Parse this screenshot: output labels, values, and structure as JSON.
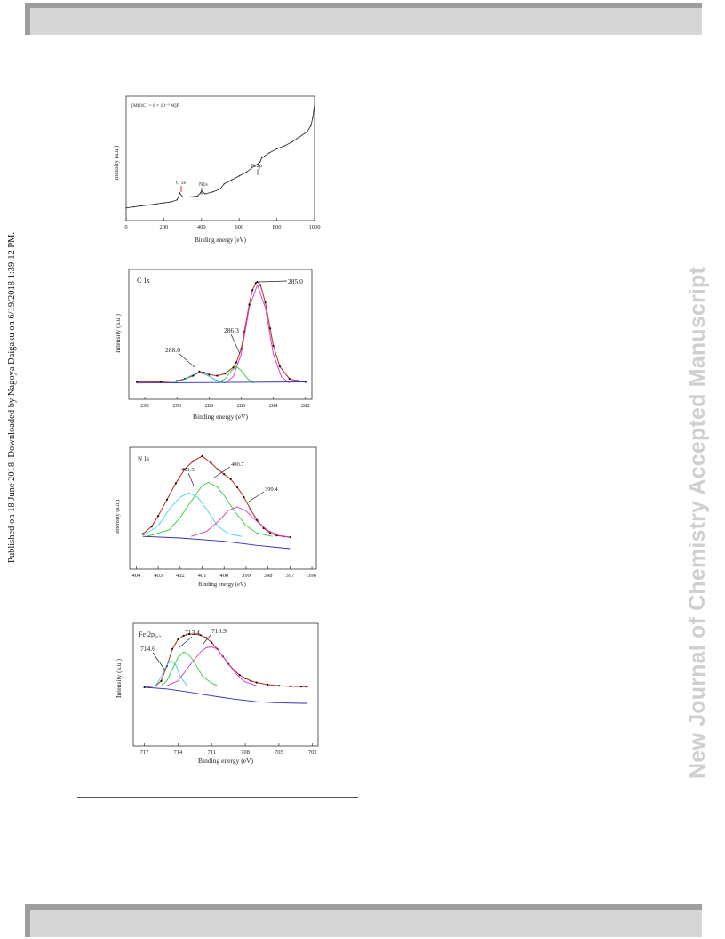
{
  "header_bar": {},
  "footer_bar": {},
  "side_note": "Published on 18 June 2018. Downloaded by Nagoya Daigaku on 6/19/2018 1:39:12 PM.",
  "watermark": "New Journal of Chemistry Accepted Manuscript",
  "chart_data": [
    {
      "type": "line",
      "panel_label": "[M(OC) = 6 × 10⁻³ M]P",
      "xlabel": "Binding energy (eV)",
      "ylabel": "Intensity (a.u.)",
      "xlim": [
        0,
        1000
      ],
      "x_ticks": [
        "0",
        "200",
        "400",
        "600",
        "800",
        "1000"
      ],
      "annotations": [
        "C 1s",
        "N1s",
        "Fe2p"
      ],
      "series": [
        {
          "x": [
            0,
            40,
            80,
            120,
            160,
            200,
            240,
            270,
            280,
            284,
            300,
            340,
            380,
            395,
            400,
            420,
            460,
            500,
            520,
            560,
            600,
            640,
            680,
            700,
            711,
            720,
            760,
            800,
            840,
            880,
            920,
            960,
            980,
            990,
            1000
          ],
          "y": [
            2,
            3,
            4,
            5,
            6,
            7,
            8,
            10,
            14,
            17,
            13,
            13,
            14,
            17,
            19,
            16,
            18,
            21,
            26,
            30,
            34,
            38,
            44,
            46,
            48,
            52,
            57,
            61,
            64,
            68,
            73,
            78,
            84,
            92,
            105
          ]
        }
      ]
    },
    {
      "type": "line",
      "panel_label": "C 1s",
      "xlabel": "Binding energy (eV)",
      "ylabel": "Intensity (a.u.)",
      "xlim": [
        293,
        281.6
      ],
      "x_ticks": [
        "292",
        "290",
        "288",
        "286",
        "284",
        "282"
      ],
      "annotations": [
        "285.0",
        "286.3",
        "288.6"
      ],
      "peaks": [
        285.0,
        286.3,
        288.6
      ],
      "series": [
        {
          "name": "fit",
          "x": [
            292.5,
            291,
            290,
            289.5,
            289,
            288.8,
            288.6,
            288.3,
            288,
            287.5,
            287,
            286.5,
            286.3,
            286,
            285.8,
            285.5,
            285.3,
            285.1,
            285.0,
            284.8,
            284.5,
            284.2,
            284,
            283.6,
            283,
            282.5,
            282
          ],
          "y": [
            3,
            3,
            4,
            6,
            9,
            11,
            13,
            12,
            10,
            9,
            11,
            17,
            22,
            35,
            52,
            78,
            92,
            99,
            100,
            97,
            80,
            55,
            38,
            18,
            6,
            4,
            3
          ]
        },
        {
          "name": "285.0",
          "x": [
            287,
            286.5,
            286,
            285.5,
            285,
            284.5,
            284,
            283.5,
            283
          ],
          "y": [
            2,
            8,
            30,
            75,
            97,
            75,
            30,
            8,
            2
          ]
        },
        {
          "name": "286.3",
          "x": [
            287.5,
            287,
            286.6,
            286.3,
            286,
            285.6,
            285.2
          ],
          "y": [
            2,
            6,
            14,
            18,
            14,
            6,
            2
          ]
        },
        {
          "name": "288.6",
          "x": [
            290.3,
            289.6,
            289,
            288.6,
            288.2,
            287.6,
            287
          ],
          "y": [
            2,
            5,
            10,
            12,
            10,
            5,
            2
          ]
        },
        {
          "name": "baseline",
          "x": [
            292.5,
            282
          ],
          "y": [
            2,
            3
          ]
        }
      ]
    },
    {
      "type": "line",
      "panel_label": "N 1s",
      "xlabel": "Binding energy (eV)",
      "ylabel": "Intensity (a.u.)",
      "xlim": [
        404.3,
        395.8
      ],
      "x_ticks": [
        "404",
        "403",
        "402",
        "401",
        "400",
        "399",
        "398",
        "397",
        "396"
      ],
      "annotations": [
        "401.5",
        "400.7",
        "399.4"
      ],
      "peaks": [
        401.5,
        400.7,
        399.4
      ],
      "series": [
        {
          "name": "fit",
          "x": [
            403.7,
            403.3,
            403,
            402.6,
            402.2,
            401.8,
            401.4,
            401.0,
            400.6,
            400.3,
            400,
            399.7,
            399.4,
            399.1,
            398.8,
            398.5,
            398.2,
            397.9,
            397.6,
            397.3,
            397.0
          ],
          "y": [
            5,
            14,
            27,
            47,
            67,
            84,
            94,
            100,
            92,
            84,
            78,
            72,
            62,
            50,
            35,
            22,
            12,
            6,
            3,
            2,
            1
          ]
        },
        {
          "name": "401.5",
          "x": [
            403.7,
            403,
            402.5,
            402,
            401.6,
            401.2,
            400.8,
            400.3,
            399.8,
            399.2
          ],
          "y": [
            3,
            15,
            35,
            50,
            55,
            50,
            35,
            15,
            5,
            2
          ]
        },
        {
          "name": "400.7",
          "x": [
            403.5,
            402.5,
            402,
            401.5,
            401,
            400.7,
            400.3,
            400,
            399.5,
            399,
            398.5,
            397.8
          ],
          "y": [
            2,
            10,
            25,
            45,
            64,
            68,
            62,
            52,
            32,
            15,
            6,
            2
          ]
        },
        {
          "name": "399.4",
          "x": [
            401.5,
            400.8,
            400.2,
            399.8,
            399.4,
            399.0,
            398.5,
            398.0,
            397.5,
            397.0
          ],
          "y": [
            2,
            8,
            22,
            34,
            38,
            33,
            20,
            9,
            3,
            1
          ]
        },
        {
          "name": "baseline",
          "x": [
            403.7,
            402,
            400,
            398.5,
            397
          ],
          "y": [
            2,
            0,
            -4,
            -9,
            -13
          ]
        }
      ]
    },
    {
      "type": "line",
      "panel_label": "Fe 2p3/2",
      "xlabel": "Binding energy (eV)",
      "ylabel": "Intensity (a.u.)",
      "xlim": [
        718,
        701.5
      ],
      "x_ticks": [
        "717",
        "714",
        "711",
        "708",
        "705",
        "702"
      ],
      "annotations": [
        "714.6",
        "713.4",
        "710.9"
      ],
      "peaks": [
        714.6,
        713.4,
        710.9
      ],
      "series": [
        {
          "name": "fit",
          "x": [
            717,
            716,
            715.5,
            715,
            714.5,
            714,
            713.5,
            713,
            712.5,
            712,
            711.5,
            711,
            710.5,
            710,
            709.5,
            709,
            708.5,
            708,
            707.5,
            707,
            706,
            705,
            704,
            703,
            702.5
          ],
          "y": [
            0,
            3,
            12,
            40,
            72,
            90,
            97,
            100,
            100,
            98,
            93,
            84,
            72,
            58,
            44,
            32,
            23,
            17,
            12,
            9,
            5,
            3,
            2,
            1.5,
            1
          ]
        },
        {
          "name": "714.6",
          "x": [
            716,
            715.5,
            715,
            714.6,
            714.2,
            713.8,
            713.2
          ],
          "y": [
            3,
            20,
            42,
            50,
            42,
            20,
            3
          ]
        },
        {
          "name": "713.4",
          "x": [
            715.5,
            715,
            714.5,
            714,
            713.5,
            713.2,
            712.8,
            712.3,
            711.8,
            711,
            710.5
          ],
          "y": [
            3,
            12,
            34,
            56,
            66,
            64,
            55,
            38,
            20,
            8,
            3
          ]
        },
        {
          "name": "710.9",
          "x": [
            715,
            714,
            713,
            712,
            711.5,
            711,
            710.5,
            710,
            709.5,
            709,
            708.5,
            708,
            707
          ],
          "y": [
            3,
            12,
            40,
            66,
            74,
            76,
            72,
            58,
            44,
            30,
            18,
            10,
            3
          ]
        },
        {
          "name": "baseline",
          "x": [
            717,
            715,
            713,
            711,
            709,
            707,
            705,
            703,
            702.5
          ],
          "y": [
            0,
            -3,
            -9,
            -16,
            -22,
            -27,
            -29,
            -30,
            -30
          ]
        }
      ]
    }
  ]
}
